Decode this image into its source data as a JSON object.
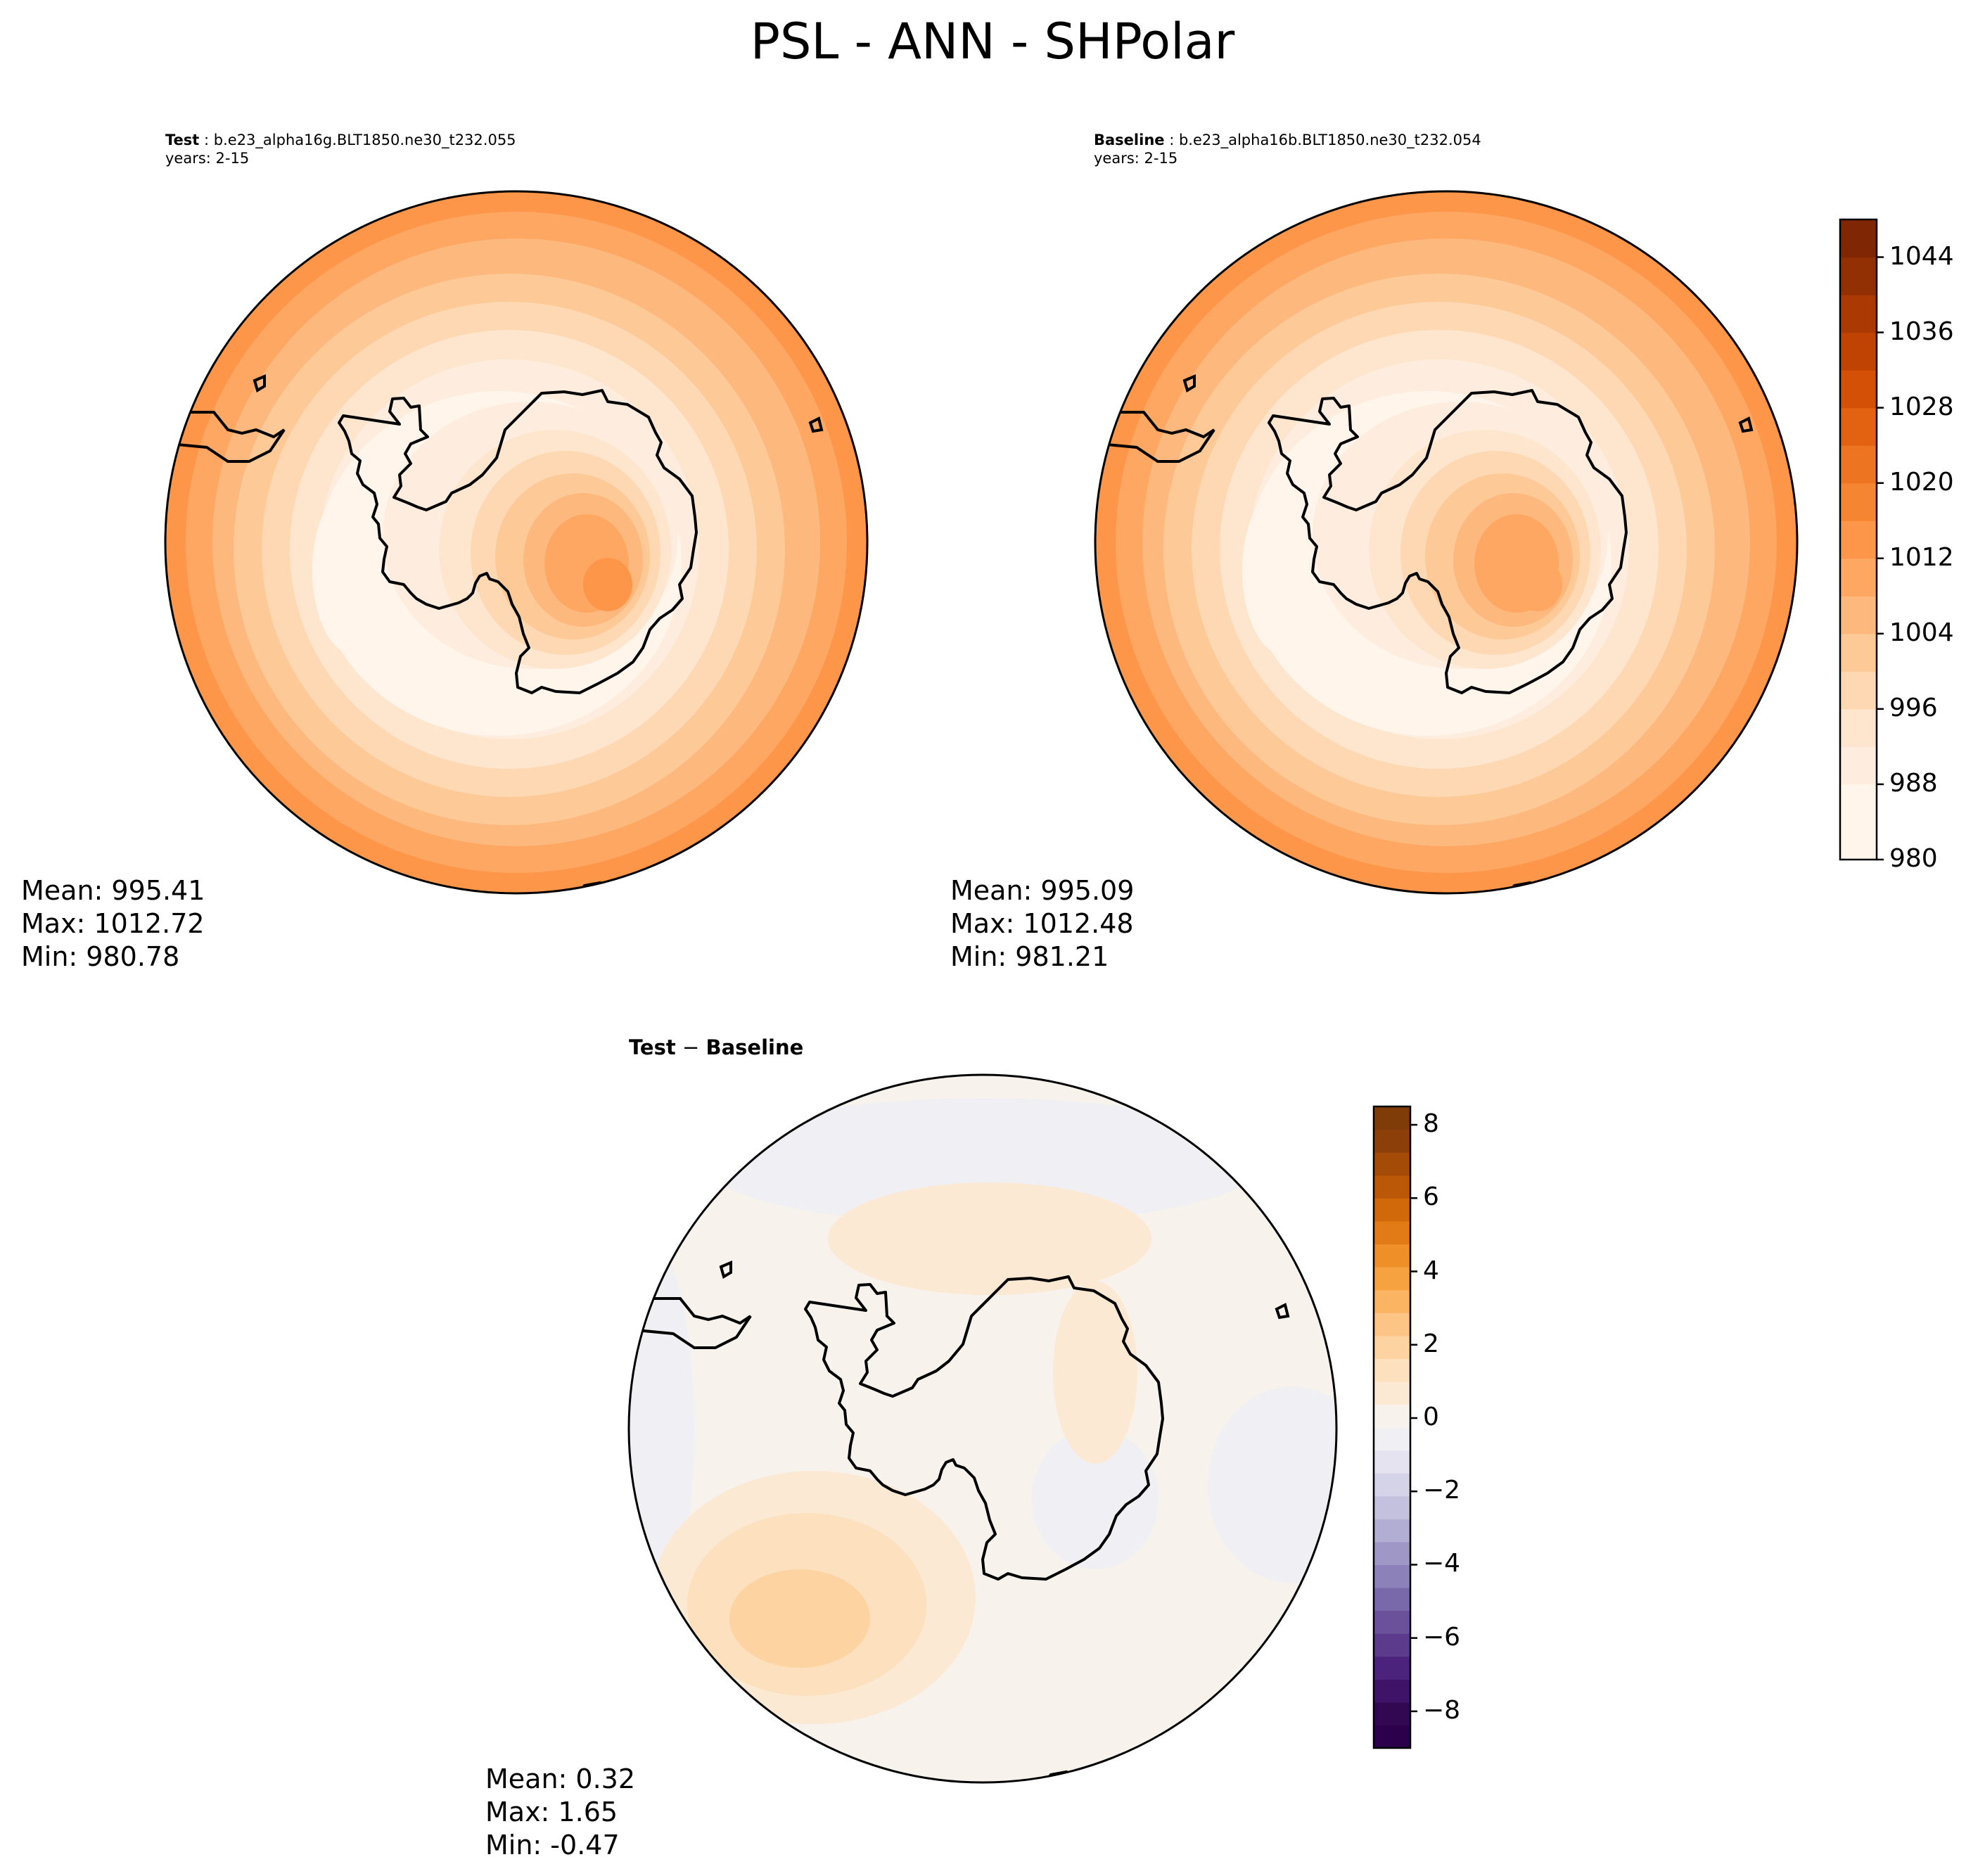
{
  "figure": {
    "title": "PSL - ANN - SHPolar"
  },
  "panels": {
    "test": {
      "label": "Test",
      "case": "b.e23_alpha16g.BLT1850.ne30_t232.055",
      "years": "years: 2-15",
      "stats": {
        "mean": "Mean: 995.41",
        "max": "Max: 1012.72",
        "min": "Min: 980.78"
      }
    },
    "baseline": {
      "label": "Baseline",
      "case": "b.e23_alpha16b.BLT1850.ne30_t232.054",
      "years": "years: 2-15",
      "stats": {
        "mean": "Mean: 995.09",
        "max": "Max: 1012.48",
        "min": "Min: 981.21"
      }
    },
    "diff": {
      "title_test": "Test",
      "title_sep": " − ",
      "title_base": "Baseline",
      "stats": {
        "mean": "Mean:  0.32",
        "max": "Max:  1.65",
        "min": "Min: -0.47"
      }
    }
  },
  "colors": {
    "psl_levels": [
      "#fff5eb",
      "#feedde",
      "#fee6ce",
      "#fdd8b2",
      "#fdc996",
      "#fdb87d",
      "#fda762",
      "#fd9649",
      "#f68532",
      "#ed7420",
      "#e26212",
      "#d35006",
      "#c04303",
      "#aa3903",
      "#933003",
      "#7f2704"
    ],
    "diff_pos": [
      "#f7f3ec",
      "#fbe9d4",
      "#fde0bd",
      "#fdd3a2",
      "#fdc585",
      "#fbb462",
      "#f7a240",
      "#ee8f28",
      "#e27a15",
      "#d1680a",
      "#bb5808",
      "#a44b08",
      "#8c3f08",
      "#7f3b08"
    ],
    "diff_neg": [
      "#f0f0f4",
      "#e4e3ef",
      "#d4d3e8",
      "#c3c1de",
      "#b1add3",
      "#9f98c6",
      "#8c82b9",
      "#7a69aa",
      "#6a519a",
      "#5c3a8c",
      "#4c237c",
      "#3f1468",
      "#330852",
      "#2d004b"
    ]
  },
  "chart_data": [
    {
      "type": "heatmap",
      "name": "test",
      "projection": "south-polar-stereographic",
      "variable": "PSL",
      "season": "ANN",
      "mean": 995.41,
      "max": 1012.72,
      "min": 980.78,
      "colorbar": "shared"
    },
    {
      "type": "heatmap",
      "name": "baseline",
      "projection": "south-polar-stereographic",
      "variable": "PSL",
      "season": "ANN",
      "mean": 995.09,
      "max": 1012.48,
      "min": 981.21,
      "colorbar": {
        "range": [
          980,
          1048
        ],
        "ticks": [
          980,
          988,
          996,
          1004,
          1012,
          1020,
          1028,
          1036,
          1044
        ],
        "tick_labels": [
          "980",
          "988",
          "996",
          "1004",
          "1012",
          "1020",
          "1028",
          "1036",
          "1044"
        ]
      }
    },
    {
      "type": "heatmap",
      "name": "difference",
      "projection": "south-polar-stereographic",
      "mean": 0.32,
      "max": 1.65,
      "min": -0.47,
      "colorbar": {
        "range": [
          -9,
          8.5
        ],
        "ticks": [
          -8,
          -6,
          -4,
          -2,
          0,
          2,
          4,
          6,
          8
        ],
        "tick_labels": [
          "−8",
          "−6",
          "−4",
          "−2",
          "0",
          "2",
          "4",
          "6",
          "8"
        ]
      }
    }
  ]
}
